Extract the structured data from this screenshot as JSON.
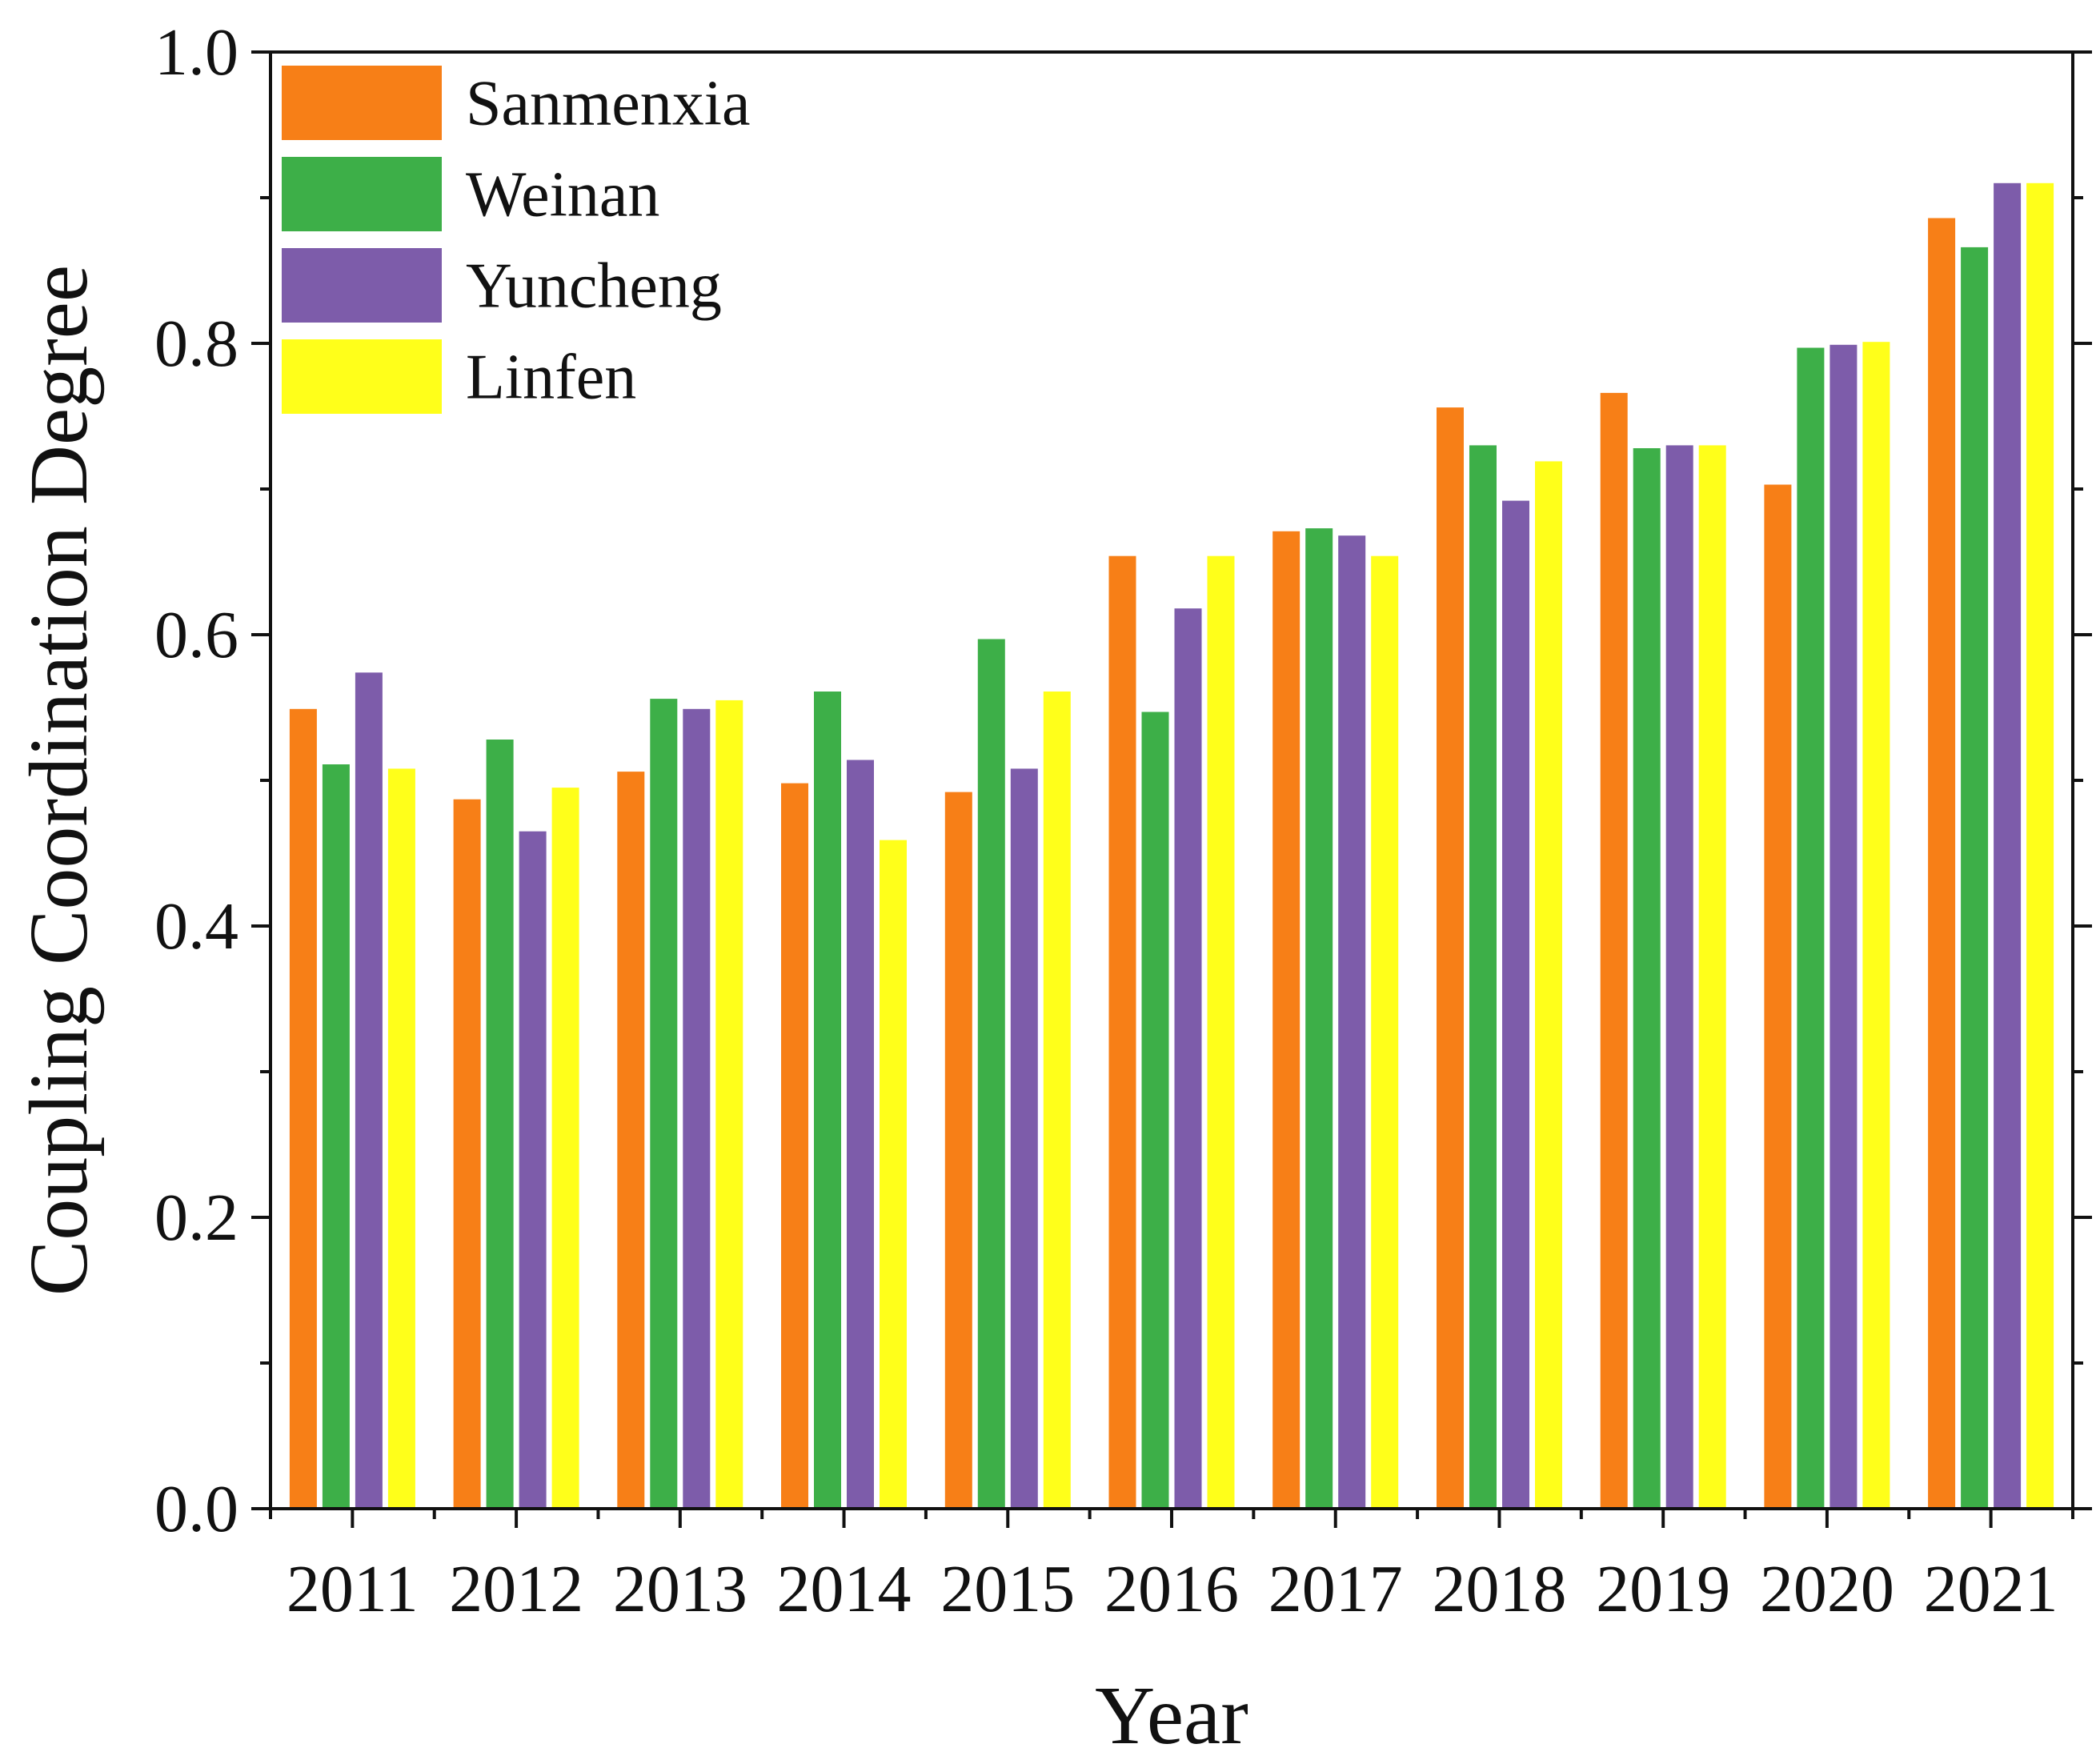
{
  "chart_data": {
    "type": "bar",
    "title": "",
    "xlabel": "Year",
    "ylabel": "Coupling Coordination Degree",
    "ylim": [
      0,
      1.0
    ],
    "yticks": [
      0.0,
      0.2,
      0.4,
      0.6,
      0.8,
      1.0
    ],
    "ytick_labels": [
      "0.0",
      "0.2",
      "0.4",
      "0.6",
      "0.8",
      "1.0"
    ],
    "categories": [
      "2011",
      "2012",
      "2013",
      "2014",
      "2015",
      "2016",
      "2017",
      "2018",
      "2019",
      "2020",
      "2021"
    ],
    "legend_position": "top-left",
    "series": [
      {
        "name": "Sanmenxia",
        "color": "#f77f17",
        "values": [
          0.549,
          0.487,
          0.506,
          0.498,
          0.492,
          0.654,
          0.671,
          0.756,
          0.766,
          0.703,
          0.886
        ]
      },
      {
        "name": "Weinan",
        "color": "#3daf48",
        "values": [
          0.511,
          0.528,
          0.556,
          0.561,
          0.597,
          0.547,
          0.673,
          0.73,
          0.728,
          0.797,
          0.866
        ]
      },
      {
        "name": "Yuncheng",
        "color": "#7d5caa",
        "values": [
          0.574,
          0.465,
          0.549,
          0.514,
          0.508,
          0.618,
          0.668,
          0.692,
          0.73,
          0.799,
          0.91
        ]
      },
      {
        "name": "Linfen",
        "color": "#ffff1a",
        "values": [
          0.508,
          0.495,
          0.555,
          0.459,
          0.561,
          0.654,
          0.654,
          0.719,
          0.73,
          0.801,
          0.91
        ]
      }
    ]
  }
}
